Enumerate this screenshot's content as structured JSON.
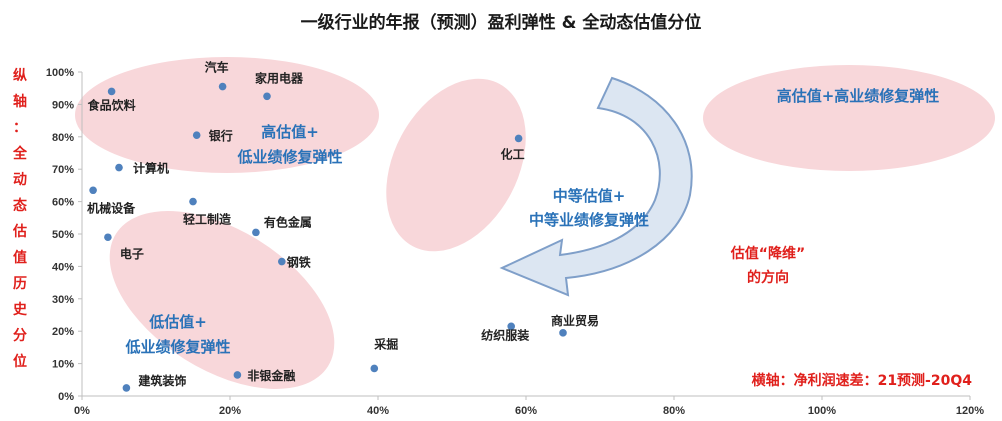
{
  "chart_data": {
    "type": "scatter",
    "title": "一级行业的年报（预测）盈利弹性 & 全动态估值分位",
    "xlabel": "横轴：净利润速差：21预测-20Q4",
    "ylabel": "纵轴：全动态估值历史分位",
    "xlim": [
      0,
      1.2
    ],
    "ylim": [
      0,
      1.0
    ],
    "x_ticks": [
      "0%",
      "20%",
      "40%",
      "60%",
      "80%",
      "100%",
      "120%"
    ],
    "y_ticks": [
      "0%",
      "10%",
      "20%",
      "30%",
      "40%",
      "50%",
      "60%",
      "70%",
      "80%",
      "90%",
      "100%"
    ],
    "points": [
      {
        "label": "食品饮料",
        "x": 0.04,
        "y": 0.94
      },
      {
        "label": "汽车",
        "x": 0.19,
        "y": 0.955
      },
      {
        "label": "家用电器",
        "x": 0.25,
        "y": 0.925
      },
      {
        "label": "银行",
        "x": 0.155,
        "y": 0.805
      },
      {
        "label": "计算机",
        "x": 0.05,
        "y": 0.705
      },
      {
        "label": "机械设备",
        "x": 0.015,
        "y": 0.635
      },
      {
        "label": "轻工制造",
        "x": 0.15,
        "y": 0.6
      },
      {
        "label": "有色金属",
        "x": 0.235,
        "y": 0.505
      },
      {
        "label": "电子",
        "x": 0.035,
        "y": 0.49
      },
      {
        "label": "钢铁",
        "x": 0.27,
        "y": 0.415
      },
      {
        "label": "化工",
        "x": 0.59,
        "y": 0.795
      },
      {
        "label": "纺织服装",
        "x": 0.58,
        "y": 0.215
      },
      {
        "label": "商业贸易",
        "x": 0.65,
        "y": 0.195
      },
      {
        "label": "采掘",
        "x": 0.395,
        "y": 0.085
      },
      {
        "label": "非银金融",
        "x": 0.21,
        "y": 0.065
      },
      {
        "label": "建筑装饰",
        "x": 0.06,
        "y": 0.025
      }
    ],
    "annotations": {
      "high_zone": [
        "高估值+",
        "低业绩修复弹性"
      ],
      "mid_zone": [
        "中等估值+",
        "中等业绩修复弹性"
      ],
      "low_zone": [
        "低估值+",
        "低业绩修复弹性"
      ],
      "top_right_zone": "高估值+高业绩修复弹性",
      "direction": [
        "估值“降维”",
        "的方向"
      ]
    },
    "grid": false,
    "colors": {
      "point": "#4f81bd",
      "ellipse_fill": "#f8d7da",
      "arrow_fill": "#dce6f2",
      "arrow_stroke": "#7f9fc9",
      "annotation_blue": "#2a72b8",
      "annotation_red": "#e0201c"
    }
  }
}
